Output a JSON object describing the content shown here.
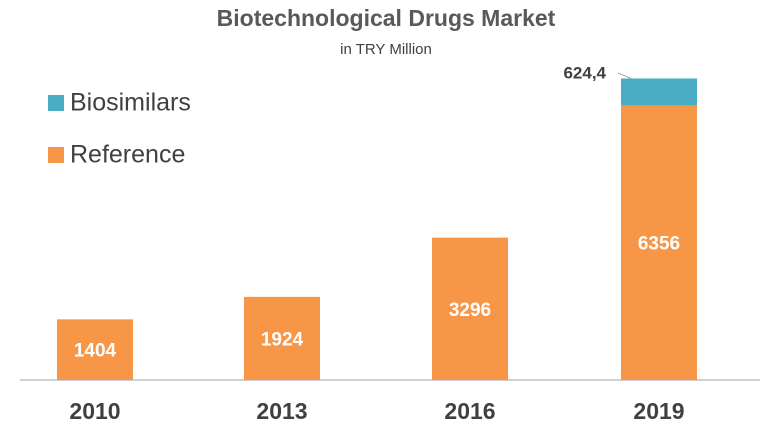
{
  "chart_data": {
    "type": "stacked_bar",
    "title": "Biotechnological Drugs Market",
    "subtitle": "in TRY Million",
    "categories": [
      "2010",
      "2013",
      "2016",
      "2019"
    ],
    "series": [
      {
        "name": "Reference",
        "color": "#f79646",
        "values": [
          1404,
          1924,
          3296,
          6356
        ]
      },
      {
        "name": "Biosimilars",
        "color": "#4bacc6",
        "values": [
          null,
          null,
          null,
          624.4
        ],
        "value_labels": [
          null,
          null,
          null,
          "624,4"
        ]
      }
    ],
    "ylim": [
      0,
      7500
    ],
    "legend": "top-left"
  }
}
